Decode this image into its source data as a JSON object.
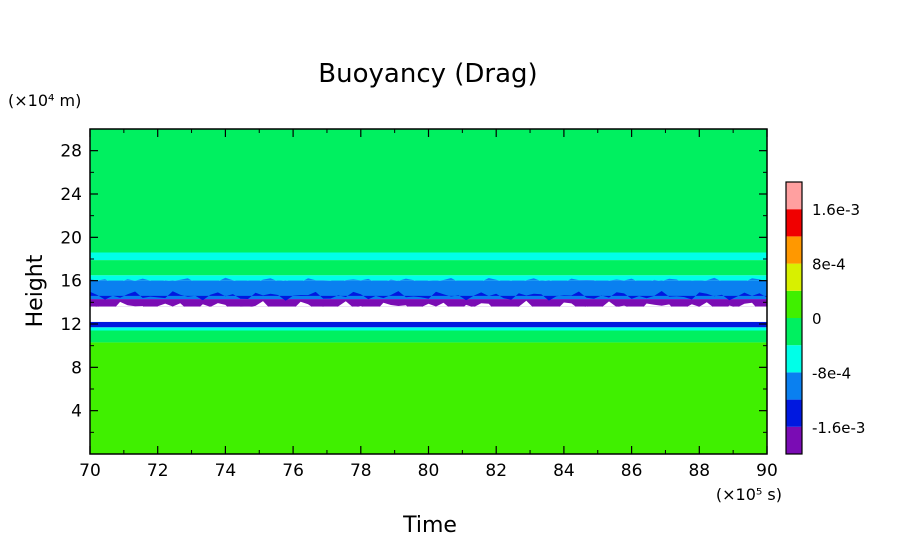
{
  "chart_data": {
    "type": "heatmap",
    "title": "Buoyancy (Drag)",
    "xlabel": "Time",
    "ylabel": "Height",
    "x_unit": "(×10⁵ s)",
    "y_unit": "(×10⁴ m)",
    "xlim": [
      70,
      90
    ],
    "ylim": [
      0,
      30
    ],
    "xticks": [
      "70",
      "72",
      "74",
      "76",
      "78",
      "80",
      "82",
      "84",
      "86",
      "88",
      "90"
    ],
    "yticks": [
      "4",
      "8",
      "12",
      "16",
      "20",
      "24",
      "28"
    ],
    "colorbar": {
      "labels": [
        "1.6e-3",
        "8e-4",
        "0",
        "-8e-4",
        "-1.6e-3"
      ],
      "label_levels": [
        0.0016,
        0.0008,
        0,
        -0.0008,
        -0.0016
      ],
      "level_range": [
        -0.002,
        0.002
      ],
      "colors": [
        "#7a0cb4",
        "#0018e0",
        "#0a80f0",
        "#00ffe8",
        "#00f060",
        "#40f000",
        "#d8f000",
        "#ff9800",
        "#f00000",
        "#ffa0a0"
      ]
    },
    "bands": [
      {
        "from": 0,
        "to": 10.3,
        "color": "#40f000"
      },
      {
        "from": 10.3,
        "to": 11.4,
        "color": "#00f060"
      },
      {
        "from": 11.4,
        "to": 11.7,
        "color": "#00ffe8"
      },
      {
        "from": 11.7,
        "to": 12.2,
        "color": "#0018e0"
      },
      {
        "from": 12.2,
        "to": 13.6,
        "color": "#ffffff"
      },
      {
        "from": 13.6,
        "to": 14.3,
        "color": "#7a0cb4"
      },
      {
        "from": 14.3,
        "to": 16.0,
        "color": "#0a80f0"
      },
      {
        "from": 16.0,
        "to": 16.5,
        "color": "#00ffe8"
      },
      {
        "from": 16.5,
        "to": 17.9,
        "color": "#00f060"
      },
      {
        "from": 17.9,
        "to": 18.6,
        "color": "#00ffe8"
      },
      {
        "from": 18.6,
        "to": 30,
        "color": "#00f060"
      }
    ]
  }
}
